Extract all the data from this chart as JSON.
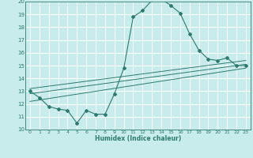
{
  "xlabel": "Humidex (Indice chaleur)",
  "bg_color": "#c8ecec",
  "line_color": "#2d7a6e",
  "grid_color": "#ffffff",
  "xlim": [
    -0.5,
    23.5
  ],
  "ylim": [
    10,
    20
  ],
  "yticks": [
    10,
    11,
    12,
    13,
    14,
    15,
    16,
    17,
    18,
    19,
    20
  ],
  "xticks": [
    0,
    1,
    2,
    3,
    4,
    5,
    6,
    7,
    8,
    9,
    10,
    11,
    12,
    13,
    14,
    15,
    16,
    17,
    18,
    19,
    20,
    21,
    22,
    23
  ],
  "main_x": [
    0,
    1,
    2,
    3,
    4,
    5,
    6,
    7,
    8,
    9,
    10,
    11,
    12,
    13,
    14,
    15,
    16,
    17,
    18,
    19,
    20,
    21,
    22,
    23
  ],
  "main_y": [
    13.0,
    12.5,
    11.8,
    11.6,
    11.5,
    10.5,
    11.5,
    11.2,
    11.2,
    12.8,
    14.8,
    18.8,
    19.3,
    20.1,
    20.2,
    19.7,
    19.1,
    17.5,
    16.2,
    15.5,
    15.4,
    15.6,
    15.0,
    15.0
  ],
  "trend_lines": [
    {
      "x": [
        0,
        23
      ],
      "y": [
        12.2,
        14.8
      ]
    },
    {
      "x": [
        0,
        23
      ],
      "y": [
        12.8,
        15.1
      ]
    },
    {
      "x": [
        0,
        23
      ],
      "y": [
        13.2,
        15.4
      ]
    }
  ]
}
